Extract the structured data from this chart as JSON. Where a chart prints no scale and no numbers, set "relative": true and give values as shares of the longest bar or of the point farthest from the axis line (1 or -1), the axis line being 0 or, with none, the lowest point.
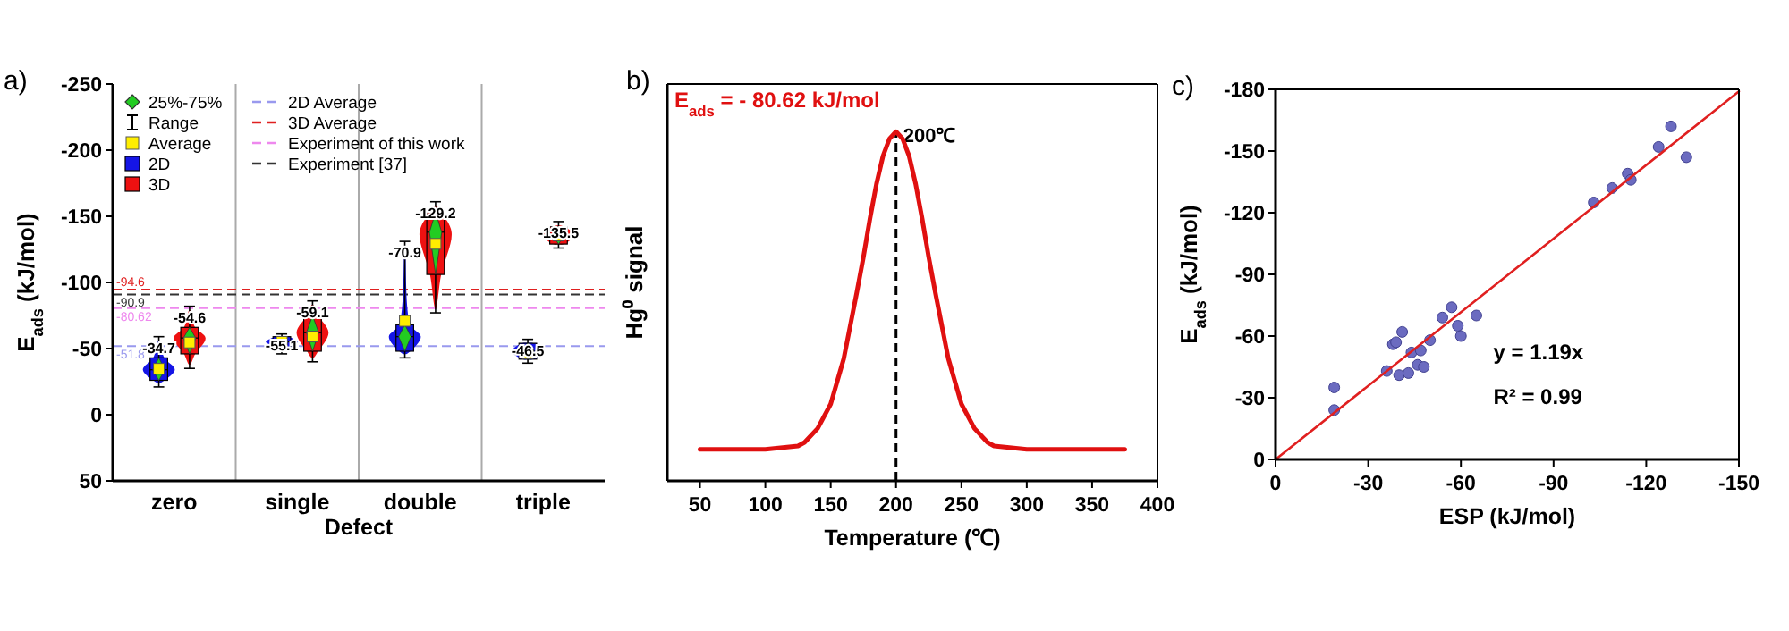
{
  "chart_data": [
    {
      "type": "box",
      "title": "a)",
      "xlabel": "Defect",
      "ylabel": "E$_{ads}$ (kJ/mol)",
      "categories": [
        "zero",
        "single",
        "double",
        "triple"
      ],
      "ylim": [
        50,
        -250
      ],
      "yticks": [
        -250,
        -200,
        -150,
        -100,
        -50,
        0,
        50
      ],
      "legend": "top left",
      "series": [
        {
          "name": "2D",
          "color": "#1515e6",
          "boxes": [
            {
              "low": -59,
              "q1": -43,
              "median": -34,
              "q3": -26,
              "high": -21,
              "mean": -34.7
            },
            {
              "low": -61,
              "q1": -59,
              "median": -55,
              "q3": -51,
              "high": -46,
              "mean": -55.1
            },
            {
              "low": -131,
              "q1": -68,
              "median": -59,
              "q3": -48,
              "high": -43,
              "mean": -70.9
            },
            {
              "low": -57,
              "q1": -54,
              "median": -48,
              "q3": -42,
              "high": -39,
              "mean": -46.5
            }
          ]
        },
        {
          "name": "3D",
          "color": "#ee1111",
          "boxes": [
            {
              "low": -82,
              "q1": -66,
              "median": -58,
              "q3": -46,
              "high": -35,
              "mean": -54.6
            },
            {
              "low": -86,
              "q1": -75,
              "median": -62,
              "q3": -48,
              "high": -40,
              "mean": -59.1
            },
            {
              "low": -161,
              "q1": -153,
              "median": -138,
              "q3": -106,
              "high": -77,
              "mean": -129.2
            },
            {
              "low": -146,
              "q1": -142,
              "median": -136,
              "q3": -129,
              "high": -126,
              "mean": -135.5
            }
          ]
        }
      ],
      "ref_lines": [
        {
          "axis": "y",
          "value": -94.6,
          "label": "-94.6",
          "color": "#e02020",
          "line_style": "dashed"
        },
        {
          "axis": "y",
          "value": -90.9,
          "label": "-90.9",
          "color": "#333333",
          "line_style": "dashed"
        },
        {
          "axis": "y",
          "value": -80.62,
          "label": "-80.62",
          "color": "#ee88ee",
          "line_style": "dashed"
        },
        {
          "axis": "y",
          "value": -51.8,
          "label": "-51.8",
          "color": "#9999ee",
          "line_style": "dashed"
        }
      ],
      "annotations": [
        "25%-75%",
        "Range",
        "Average",
        "3D Average",
        "Experiment  [37]",
        "Experiment of this work",
        "2D Average",
        "-34.7",
        "-54.6",
        "-55.1",
        "-59.1",
        "-70.9",
        "-129.2",
        "-46.5",
        "-135.5"
      ]
    },
    {
      "type": "line",
      "title": "b)",
      "xlabel": "Temperature (℃)",
      "ylabel": "Hg⁰ signal",
      "relative": true,
      "xlim": [
        25,
        400
      ],
      "xticks": [
        50,
        100,
        150,
        200,
        250,
        300,
        350,
        400
      ],
      "x": [
        50,
        100,
        125,
        130,
        140,
        150,
        160,
        170,
        175,
        180,
        185,
        190,
        195,
        200,
        205,
        210,
        215,
        220,
        225,
        230,
        240,
        250,
        260,
        270,
        275,
        300,
        350,
        375
      ],
      "series": [
        {
          "color": "#e01010",
          "values": [
            0.09,
            0.09,
            0.1,
            0.11,
            0.15,
            0.22,
            0.35,
            0.54,
            0.64,
            0.75,
            0.85,
            0.93,
            0.98,
            1,
            0.98,
            0.93,
            0.85,
            0.75,
            0.64,
            0.54,
            0.35,
            0.22,
            0.15,
            0.11,
            0.1,
            0.09,
            0.09,
            0.09
          ]
        }
      ],
      "ref_lines": [
        {
          "axis": "x",
          "value": 200,
          "label": "200℃",
          "color": "#000000",
          "line_style": "dashed"
        }
      ],
      "annotations": [
        "E$_{ads}$ = - 80.62 kJ/mol"
      ]
    },
    {
      "type": "scatter",
      "title": "c)",
      "xlabel": "ESP (kJ/mol)",
      "ylabel": "E$_{ads}$ (kJ/mol)",
      "xlim": [
        0,
        -150
      ],
      "xticks": [
        0,
        -30,
        -60,
        -90,
        -120,
        -150
      ],
      "ylim": [
        0,
        -180
      ],
      "yticks": [
        0,
        -30,
        -60,
        -90,
        -120,
        -150,
        -180
      ],
      "series": [
        {
          "color": "#6b6bc0",
          "marker": "circle",
          "x": [
            -19,
            -19,
            -36,
            -38,
            -39,
            -41,
            -40,
            -43,
            -44,
            -46,
            -47,
            -48,
            -50,
            -54,
            -57,
            -59,
            -60,
            -65,
            -103,
            -109,
            -114,
            -115,
            -124,
            -128,
            -133
          ],
          "values": [
            -35,
            -24,
            -43,
            -56,
            -57,
            -62,
            -41,
            -42,
            -52,
            -46,
            -53,
            -45,
            -58,
            -69,
            -74,
            -65,
            -60,
            -70,
            -125,
            -132,
            -139,
            -136,
            -152,
            -162,
            -147
          ]
        },
        {
          "type": "line",
          "color": "#e02020",
          "x": [
            0,
            -150
          ],
          "values": [
            0,
            -179
          ]
        }
      ],
      "annotations": [
        "y = 1.19x",
        "R² = 0.99"
      ]
    }
  ]
}
